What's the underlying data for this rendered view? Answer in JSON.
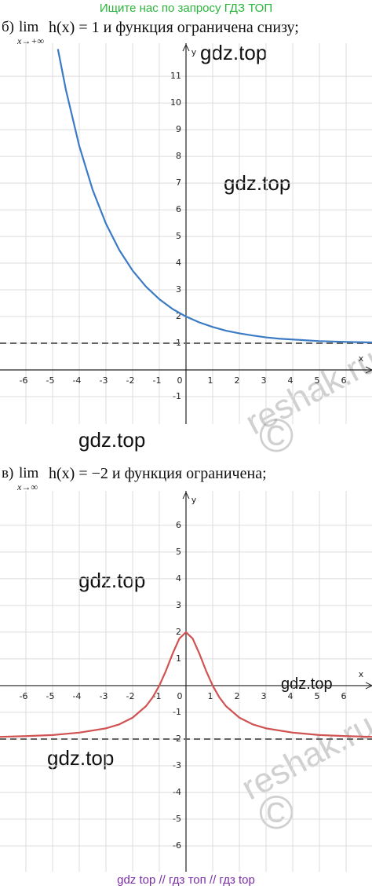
{
  "header": "Ищите нас по запросу ГДЗ ТОП",
  "footer": "gdz top  //  гдз топ  //  гдз top",
  "watermarks": [
    "gdz.top",
    "gdz.top",
    "gdz.top",
    "gdz.top",
    "gdz.top",
    "gdz.top"
  ],
  "reshak": [
    "reshak.ru",
    "©",
    "reshak.ru",
    "©"
  ],
  "chart_data": [
    {
      "type": "line",
      "caption": {
        "label": "б)",
        "lim": "lim",
        "sub": "x→+∞",
        "expr": "h(x) = 1 и функция ограничена снизу;"
      },
      "x_label": "x",
      "y_label": "y",
      "x": [
        -4.8,
        -4.5,
        -4,
        -3.5,
        -3,
        -2.5,
        -2,
        -1.5,
        -1,
        -0.5,
        0,
        0.5,
        1,
        1.5,
        2,
        2.5,
        3,
        3.5,
        4,
        5,
        6,
        7
      ],
      "series": [
        {
          "color": "#3b7bc4",
          "values": [
            12.02,
            10.49,
            8.39,
            6.75,
            5.48,
            4.49,
            3.72,
            3.12,
            2.65,
            2.28,
            2,
            1.78,
            1.61,
            1.47,
            1.37,
            1.29,
            1.22,
            1.17,
            1.14,
            1.08,
            1.05,
            1.03
          ]
        }
      ],
      "asymptote": 1,
      "xlim": [
        -6.97,
        6.97
      ],
      "ylim": [
        -2.03,
        12.24
      ],
      "xticks": [
        -6,
        -5,
        -4,
        -3,
        -2,
        -1,
        0,
        1,
        2,
        3,
        4,
        5,
        6
      ],
      "yticks": [
        -1,
        1,
        2,
        3,
        4,
        5,
        6,
        7,
        8,
        9,
        10,
        11
      ],
      "grid": true
    },
    {
      "type": "line",
      "caption": {
        "label": "в)",
        "lim": "lim",
        "sub": "x→∞",
        "expr": "h(x) = −2 и функция ограничена;"
      },
      "x_label": "x",
      "y_label": "y",
      "x": [
        -7,
        -6,
        -5,
        -4,
        -3,
        -2.5,
        -2,
        -1.5,
        -1.25,
        -1,
        -0.75,
        -0.5,
        -0.25,
        0,
        0.25,
        0.5,
        0.75,
        1,
        1.25,
        1.5,
        2,
        2.5,
        3,
        4,
        5,
        6,
        7
      ],
      "series": [
        {
          "color": "#d05252",
          "values": [
            -1.92,
            -1.89,
            -1.85,
            -1.76,
            -1.6,
            -1.45,
            -1.2,
            -0.77,
            -0.44,
            0,
            0.56,
            1.2,
            1.76,
            2,
            1.76,
            1.2,
            0.56,
            0,
            -0.44,
            -0.77,
            -1.2,
            -1.45,
            -1.6,
            -1.76,
            -1.85,
            -1.89,
            -1.92
          ]
        }
      ],
      "asymptote": -2,
      "xlim": [
        -6.97,
        6.97
      ],
      "ylim": [
        -6.97,
        7.29
      ],
      "xticks": [
        -6,
        -5,
        -4,
        -3,
        -2,
        -1,
        0,
        1,
        2,
        3,
        4,
        5,
        6
      ],
      "yticks": [
        -6,
        -5,
        -4,
        -3,
        -2,
        -1,
        1,
        2,
        3,
        4,
        5,
        6
      ],
      "grid": true
    }
  ]
}
